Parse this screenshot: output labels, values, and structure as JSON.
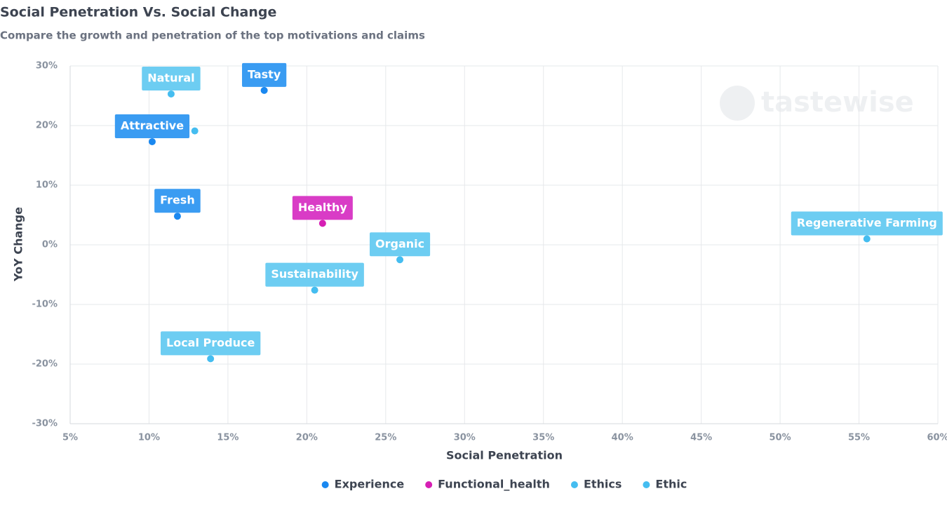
{
  "chart_data": {
    "type": "scatter",
    "title": "Social Penetration Vs. Social Change",
    "subtitle": "Compare the growth and penetration of the top motivations and claims",
    "x_label": "Social Penetration",
    "y_label": "YoY Change",
    "watermark": "tastewise",
    "xlim": [
      5,
      60
    ],
    "ylim": [
      -30,
      30
    ],
    "xticks": [
      {
        "value": 5,
        "label": "5%"
      },
      {
        "value": 10,
        "label": "10%"
      },
      {
        "value": 15,
        "label": "15%"
      },
      {
        "value": 20,
        "label": "20%"
      },
      {
        "value": 25,
        "label": "25%"
      },
      {
        "value": 30,
        "label": "30%"
      },
      {
        "value": 35,
        "label": "35%"
      },
      {
        "value": 40,
        "label": "40%"
      },
      {
        "value": 45,
        "label": "45%"
      },
      {
        "value": 50,
        "label": "50%"
      },
      {
        "value": 55,
        "label": "55%"
      },
      {
        "value": 60,
        "label": "60%"
      }
    ],
    "yticks": [
      {
        "value": -30,
        "label": "-30%"
      },
      {
        "value": -20,
        "label": "-20%"
      },
      {
        "value": -10,
        "label": "-10%"
      },
      {
        "value": 0,
        "label": "0%"
      },
      {
        "value": 10,
        "label": "10%"
      },
      {
        "value": 20,
        "label": "20%"
      },
      {
        "value": 30,
        "label": "30%"
      }
    ],
    "grid": true,
    "legend": "bottom",
    "series": [
      {
        "name": "Experience",
        "color": "#1a88f0",
        "label_color": "#3a9cf2",
        "x": [
          17.3,
          10.2,
          11.8
        ],
        "values": [
          25.9,
          17.3,
          4.8
        ],
        "labels": [
          "Tasty",
          "Attractive",
          "Fresh"
        ]
      },
      {
        "name": "Functional_health",
        "color": "#d61fb4",
        "label_color": "#d93cc6",
        "x": [
          21.0
        ],
        "values": [
          3.6
        ],
        "labels": [
          "Healthy"
        ]
      },
      {
        "name": "Ethics",
        "color": "#45bdf0",
        "label_color": "#6dcdf2",
        "x": [
          11.4,
          12.9,
          25.9,
          20.5,
          13.9
        ],
        "values": [
          25.3,
          19.1,
          -2.5,
          -7.6,
          -19.1
        ],
        "labels": [
          "Natural",
          null,
          "Organic",
          "Sustainability",
          "Local Produce"
        ]
      },
      {
        "name": "Ethic",
        "color": "#45bdf0",
        "label_color": "#6dcdf2",
        "x": [
          55.5
        ],
        "values": [
          1.0
        ],
        "labels": [
          "Regenerative Farming"
        ]
      }
    ]
  }
}
